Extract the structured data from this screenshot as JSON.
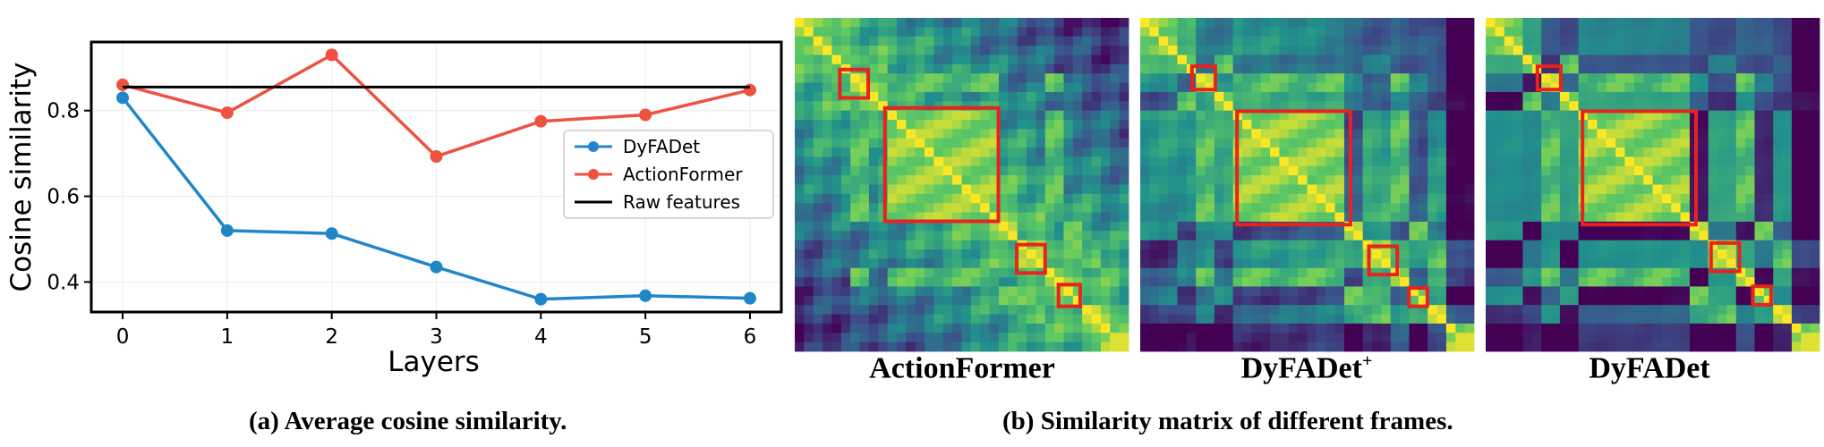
{
  "chart_data": [
    {
      "type": "line",
      "xlabel": "Layers",
      "ylabel": "Cosine similarity",
      "x": [
        0,
        1,
        2,
        3,
        4,
        5,
        6
      ],
      "xticks": [
        "0",
        "1",
        "2",
        "3",
        "4",
        "5",
        "6"
      ],
      "yticks": [
        "0.4",
        "0.6",
        "0.8"
      ],
      "ytick_values": [
        0.4,
        0.6,
        0.8
      ],
      "xlim": [
        -0.3,
        6.3
      ],
      "ylim": [
        0.33,
        0.96
      ],
      "grid": true,
      "legend_position": "right",
      "series": [
        {
          "name": "DyFADet",
          "values": [
            0.83,
            0.52,
            0.513,
            0.435,
            0.36,
            0.368,
            0.362
          ],
          "color": "#1f86c8"
        },
        {
          "name": "ActionFormer",
          "values": [
            0.86,
            0.795,
            0.93,
            0.693,
            0.775,
            0.79,
            0.848
          ],
          "color": "#ee5140"
        },
        {
          "name": "Raw features",
          "values": [
            0.855,
            0.855,
            0.855,
            0.855,
            0.855,
            0.855,
            0.855
          ],
          "color": "#000000"
        }
      ],
      "caption": "(a) Average cosine similarity."
    },
    {
      "type": "heatmap",
      "panels": [
        {
          "label": "ActionFormer",
          "label_sup": ""
        },
        {
          "label": "DyFADet",
          "label_sup": "+"
        },
        {
          "label": "DyFADet",
          "label_sup": ""
        }
      ],
      "colormap": [
        "#440154",
        "#3b528b",
        "#21918c",
        "#5ec962",
        "#fde725"
      ],
      "highlight_color": "#e8221e",
      "caption": "(b) Similarity matrix of different frames."
    }
  ]
}
